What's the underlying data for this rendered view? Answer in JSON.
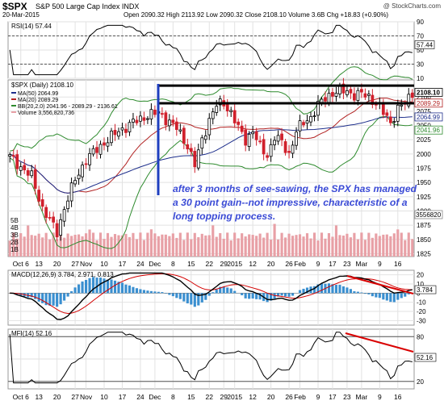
{
  "header": {
    "symbol": "$SPX",
    "name": "S&P 500 Large Cap Index INDX",
    "date": "20-Mar-2015",
    "quote": "Open 2090.32  High 2113.92  Low 2090.32  Close 2108.10  Volume 3.6B  Chg +18.83 (+0.90%)",
    "credit": "@ StockCharts.com"
  },
  "annotation": "after 3 months of see-sawing, the SPX has managed a 30 point gain--not impressive, characteristic of a long topping process.",
  "colors": {
    "up_candle": "#ffffff",
    "down_candle": "#d0202c",
    "ma50": "#1e2f8c",
    "ma20": "#b22222",
    "bb": "#2e8b2e",
    "volume": "#e8a0a6",
    "macd_line": "#000000",
    "macd_signal": "#d40000",
    "macd_hist": "#3a8fd0",
    "annotation": "#3b4bd6",
    "trend_line": "#d90000",
    "marker_line": "#1f3fbf",
    "resistance_line": "#000000"
  },
  "chart_data": [
    {
      "type": "line",
      "name": "RSI",
      "label": "RSI(14) 57.44",
      "ylim": [
        10,
        90
      ],
      "y_ticks": [
        10,
        30,
        50,
        70,
        90
      ],
      "reference_lines": [
        30,
        70
      ],
      "last_value": 57.44,
      "x_ticks": [
        "Oct 6",
        "13",
        "20",
        "27",
        "Nov",
        "10",
        "17",
        "24",
        "Dec",
        "8",
        "15",
        "22",
        "29",
        "2015",
        "12",
        "20",
        "26",
        "Feb",
        "9",
        "17",
        "23",
        "Mar",
        "9",
        "16"
      ]
    },
    {
      "type": "candlestick",
      "name": "Price",
      "label": "$SPX (Daily) 2108.10",
      "legend": [
        "MA(50) 2064.99",
        "MA(20) 2089.29",
        "BB(20,2.0) 2041.96 - 2089.29 - 2136.61",
        "Volume 3,556,820,736"
      ],
      "ylim": [
        1820,
        2130
      ],
      "y_ticks": [
        1825,
        1850,
        1875,
        1900,
        1925,
        1950,
        1975,
        2000,
        2025,
        2050,
        2075,
        2100
      ],
      "volume_ticks": [
        "1B",
        "2B",
        "3B",
        "4B",
        "5B"
      ],
      "value_tags": [
        "2108.10",
        "2089.29",
        "2064.99",
        "2041.96",
        "3556820"
      ],
      "horizontal_lines": [
        2089,
        2120
      ],
      "x_ticks": [
        "Oct 6",
        "13",
        "20",
        "27",
        "Nov",
        "10",
        "17",
        "24",
        "Dec",
        "8",
        "15",
        "22",
        "29",
        "2015",
        "12",
        "20",
        "26",
        "Feb",
        "9",
        "17",
        "23",
        "Mar",
        "9",
        "16"
      ]
    },
    {
      "type": "line",
      "name": "MACD",
      "label": "MACD(12,26,9) 3.784, 2.971, 0.813",
      "ylim": [
        -35,
        25
      ],
      "y_ticks": [
        -30,
        -20,
        -10,
        0,
        10,
        20
      ],
      "value_tag": "3.784",
      "x_ticks": []
    },
    {
      "type": "line",
      "name": "MFI",
      "label": "MFI(14) 52.16",
      "ylim": [
        10,
        90
      ],
      "y_ticks": [
        20,
        50,
        80
      ],
      "value_tag": "52.16",
      "x_ticks": [
        "Oct 6",
        "13",
        "20",
        "27",
        "Nov",
        "10",
        "17",
        "24",
        "Dec",
        "8",
        "15",
        "22",
        "29",
        "2015",
        "12",
        "20",
        "26",
        "Feb",
        "9",
        "17",
        "23",
        "Mar",
        "9",
        "16"
      ]
    }
  ]
}
